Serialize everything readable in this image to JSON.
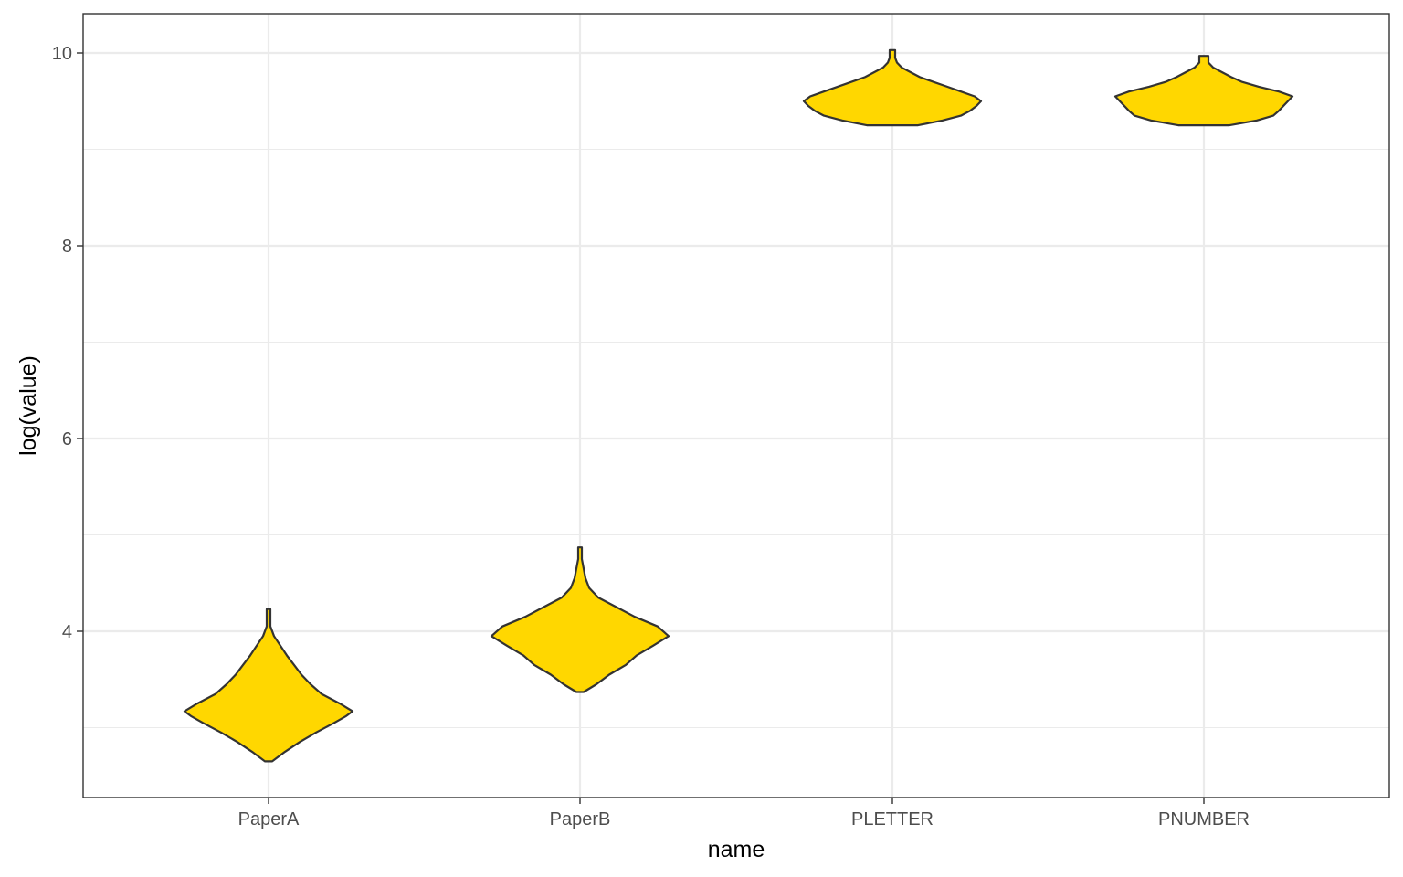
{
  "chart_data": {
    "type": "violin",
    "xlabel": "name",
    "ylabel": "log(value)",
    "categories": [
      "PaperA",
      "PaperB",
      "PLETTER",
      "PNUMBER"
    ],
    "ylim": [
      2.4,
      10.4
    ],
    "y_ticks": [
      4,
      6,
      8,
      10
    ],
    "y_tick_labels": [
      "4",
      "6",
      "8",
      "10"
    ],
    "grid": true,
    "legend": "none",
    "fill_color": "#FFD700",
    "outline_color": "#333333",
    "violins": [
      {
        "name": "PaperA",
        "y_min": 2.65,
        "y_max": 4.23,
        "profile": [
          [
            2.65,
            0.04
          ],
          [
            2.75,
            0.18
          ],
          [
            2.85,
            0.34
          ],
          [
            2.95,
            0.52
          ],
          [
            3.05,
            0.72
          ],
          [
            3.12,
            0.85
          ],
          [
            3.17,
            0.92
          ],
          [
            3.25,
            0.78
          ],
          [
            3.35,
            0.58
          ],
          [
            3.45,
            0.46
          ],
          [
            3.55,
            0.36
          ],
          [
            3.65,
            0.28
          ],
          [
            3.75,
            0.2
          ],
          [
            3.85,
            0.13
          ],
          [
            3.95,
            0.06
          ],
          [
            4.05,
            0.02
          ],
          [
            4.15,
            0.02
          ],
          [
            4.23,
            0.02
          ]
        ]
      },
      {
        "name": "PaperB",
        "y_min": 3.37,
        "y_max": 4.87,
        "profile": [
          [
            3.37,
            0.04
          ],
          [
            3.45,
            0.18
          ],
          [
            3.55,
            0.32
          ],
          [
            3.65,
            0.5
          ],
          [
            3.75,
            0.62
          ],
          [
            3.85,
            0.8
          ],
          [
            3.95,
            0.97
          ],
          [
            4.05,
            0.85
          ],
          [
            4.15,
            0.6
          ],
          [
            4.25,
            0.4
          ],
          [
            4.35,
            0.2
          ],
          [
            4.45,
            0.1
          ],
          [
            4.55,
            0.06
          ],
          [
            4.65,
            0.04
          ],
          [
            4.75,
            0.02
          ],
          [
            4.87,
            0.02
          ]
        ]
      },
      {
        "name": "PLETTER",
        "y_min": 9.25,
        "y_max": 10.03,
        "profile": [
          [
            9.25,
            0.28
          ],
          [
            9.3,
            0.55
          ],
          [
            9.35,
            0.75
          ],
          [
            9.4,
            0.85
          ],
          [
            9.45,
            0.92
          ],
          [
            9.5,
            0.97
          ],
          [
            9.55,
            0.9
          ],
          [
            9.6,
            0.75
          ],
          [
            9.65,
            0.6
          ],
          [
            9.7,
            0.45
          ],
          [
            9.75,
            0.3
          ],
          [
            9.8,
            0.2
          ],
          [
            9.85,
            0.1
          ],
          [
            9.9,
            0.05
          ],
          [
            9.95,
            0.03
          ],
          [
            10.03,
            0.03
          ]
        ]
      },
      {
        "name": "PNUMBER",
        "y_min": 9.25,
        "y_max": 9.97,
        "profile": [
          [
            9.25,
            0.28
          ],
          [
            9.3,
            0.58
          ],
          [
            9.35,
            0.76
          ],
          [
            9.4,
            0.82
          ],
          [
            9.45,
            0.87
          ],
          [
            9.5,
            0.92
          ],
          [
            9.55,
            0.97
          ],
          [
            9.6,
            0.82
          ],
          [
            9.65,
            0.6
          ],
          [
            9.7,
            0.42
          ],
          [
            9.75,
            0.3
          ],
          [
            9.8,
            0.2
          ],
          [
            9.85,
            0.1
          ],
          [
            9.9,
            0.05
          ],
          [
            9.97,
            0.05
          ]
        ]
      }
    ]
  }
}
